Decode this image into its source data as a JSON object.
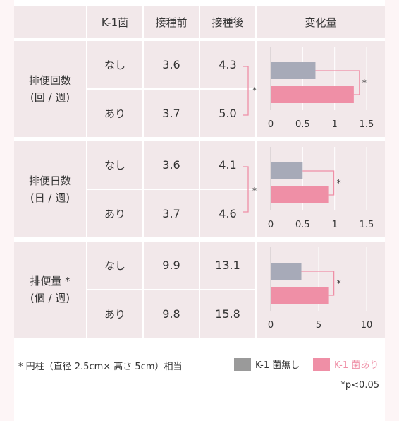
{
  "header": {
    "col1": "K-1菌",
    "col2": "接種前",
    "col3": "接種後",
    "col4": "変化量"
  },
  "groups": [
    {
      "label1": "排便回数",
      "label2": "(回 / 週)",
      "rows": [
        {
          "k1": "なし",
          "before": "3.6",
          "after": "4.3"
        },
        {
          "k1": "あり",
          "before": "3.7",
          "after": "5.0"
        }
      ]
    },
    {
      "label1": "排便日数",
      "label2": "(日 / 週)",
      "rows": [
        {
          "k1": "なし",
          "before": "3.6",
          "after": "4.1"
        },
        {
          "k1": "あり",
          "before": "3.7",
          "after": "4.6"
        }
      ]
    },
    {
      "label1": "排便量 *",
      "label2": "(個 / 週)",
      "rows": [
        {
          "k1": "なし",
          "before": "9.9",
          "after": "13.1"
        },
        {
          "k1": "あり",
          "before": "9.8",
          "after": "15.8"
        }
      ]
    }
  ],
  "chart_data": [
    {
      "type": "bar",
      "orientation": "horizontal",
      "categories": [
        "K-1 菌無し",
        "K-1 菌あり"
      ],
      "values": [
        0.7,
        1.3
      ],
      "xlim": [
        0,
        1.5
      ],
      "xticks": [
        "0",
        "0.5",
        "1",
        "1.5"
      ],
      "significance": "*"
    },
    {
      "type": "bar",
      "orientation": "horizontal",
      "categories": [
        "K-1 菌無し",
        "K-1 菌あり"
      ],
      "values": [
        0.5,
        0.9
      ],
      "xlim": [
        0,
        1.5
      ],
      "xticks": [
        "0",
        "0.5",
        "1",
        "1.5"
      ],
      "significance": "*"
    },
    {
      "type": "bar",
      "orientation": "horizontal",
      "categories": [
        "K-1 菌無し",
        "K-1 菌あり"
      ],
      "values": [
        3.2,
        6.0
      ],
      "xlim": [
        0,
        10
      ],
      "xticks": [
        "0",
        "5",
        "10"
      ],
      "significance": "*"
    }
  ],
  "star": "*",
  "colors": {
    "none": "#a7aab8",
    "with": "#ef8fa6",
    "bracket": "#ef8fa6"
  },
  "footnote": "* 円柱（直径 2.5cm× 高さ 5cm）相当",
  "legend": {
    "none": "K-1 菌無し",
    "with": "K-1 菌あり",
    "none_swatch": "#9a9a9a",
    "with_swatch": "#ef8fa6",
    "with_text_color": "#ef8fa6"
  },
  "pvalue": "*p<0.05"
}
